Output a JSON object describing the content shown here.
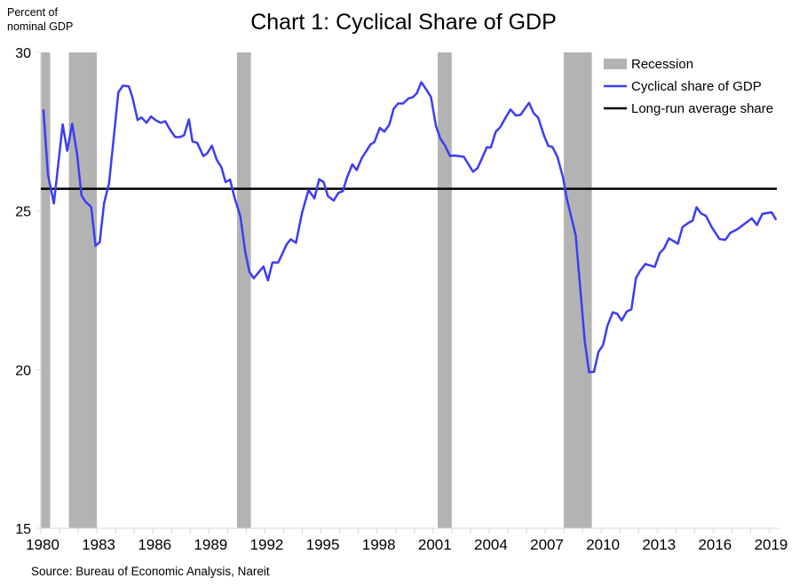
{
  "chart_data": {
    "type": "line",
    "title": "Chart 1: Cyclical Share of GDP",
    "ylabel": "Percent of nominal GDP",
    "xlim": [
      1980,
      2019.5
    ],
    "ylim": [
      15,
      30
    ],
    "yticks": [
      15,
      20,
      25,
      30
    ],
    "xticks": [
      1980,
      1983,
      1986,
      1989,
      1992,
      1995,
      1998,
      2001,
      2004,
      2007,
      2010,
      2013,
      2016,
      2019
    ],
    "grid": false,
    "legend_position": "top-right",
    "legend": [
      "Recession",
      "Cyclical share of GDP",
      "Long-run average share"
    ],
    "colors": {
      "recession": "#b3b3b3",
      "cyclical": "#3c3cf5",
      "average": "#000000"
    },
    "recessions": [
      [
        1980.0,
        1980.5
      ],
      [
        1981.5,
        1983.0
      ],
      [
        1990.5,
        1991.25
      ],
      [
        2001.25,
        2002.0
      ],
      [
        2008.0,
        2009.5
      ]
    ],
    "long_run_average": 25.7,
    "series": [
      {
        "name": "Cyclical share of GDP",
        "points": [
          [
            1980.14,
            28.2
          ],
          [
            1980.38,
            26.15
          ],
          [
            1980.7,
            25.24
          ],
          [
            1981.17,
            27.73
          ],
          [
            1981.41,
            26.9
          ],
          [
            1981.68,
            27.75
          ],
          [
            1981.94,
            26.8
          ],
          [
            1982.17,
            25.5
          ],
          [
            1982.38,
            25.3
          ],
          [
            1982.7,
            25.12
          ],
          [
            1982.93,
            23.9
          ],
          [
            1983.15,
            24.02
          ],
          [
            1983.39,
            25.26
          ],
          [
            1983.65,
            25.87
          ],
          [
            1983.88,
            27.17
          ],
          [
            1984.15,
            28.74
          ],
          [
            1984.39,
            28.95
          ],
          [
            1984.71,
            28.93
          ],
          [
            1984.91,
            28.57
          ],
          [
            1985.18,
            27.87
          ],
          [
            1985.39,
            27.95
          ],
          [
            1985.66,
            27.78
          ],
          [
            1985.9,
            27.98
          ],
          [
            1986.13,
            27.87
          ],
          [
            1986.41,
            27.78
          ],
          [
            1986.66,
            27.83
          ],
          [
            1986.93,
            27.55
          ],
          [
            1987.19,
            27.33
          ],
          [
            1987.45,
            27.33
          ],
          [
            1987.67,
            27.39
          ],
          [
            1987.93,
            27.89
          ],
          [
            1988.12,
            27.19
          ],
          [
            1988.37,
            27.15
          ],
          [
            1988.7,
            26.73
          ],
          [
            1988.91,
            26.82
          ],
          [
            1989.16,
            27.06
          ],
          [
            1989.42,
            26.61
          ],
          [
            1989.67,
            26.38
          ],
          [
            1989.89,
            25.91
          ],
          [
            1990.13,
            25.99
          ],
          [
            1990.38,
            25.4
          ],
          [
            1990.68,
            24.84
          ],
          [
            1990.94,
            23.72
          ],
          [
            1991.16,
            23.09
          ],
          [
            1991.4,
            22.88
          ],
          [
            1991.92,
            23.25
          ],
          [
            1992.16,
            22.81
          ],
          [
            1992.4,
            23.38
          ],
          [
            1992.71,
            23.38
          ],
          [
            1993.16,
            23.95
          ],
          [
            1993.38,
            24.11
          ],
          [
            1993.66,
            24.0
          ],
          [
            1993.98,
            24.93
          ],
          [
            1994.33,
            25.66
          ],
          [
            1994.65,
            25.4
          ],
          [
            1994.9,
            26.0
          ],
          [
            1995.14,
            25.91
          ],
          [
            1995.37,
            25.47
          ],
          [
            1995.68,
            25.33
          ],
          [
            1995.93,
            25.57
          ],
          [
            1996.17,
            25.63
          ],
          [
            1996.39,
            26.05
          ],
          [
            1996.68,
            26.47
          ],
          [
            1996.91,
            26.29
          ],
          [
            1997.18,
            26.66
          ],
          [
            1997.66,
            27.1
          ],
          [
            1997.86,
            27.17
          ],
          [
            1998.15,
            27.62
          ],
          [
            1998.39,
            27.5
          ],
          [
            1998.65,
            27.71
          ],
          [
            1998.89,
            28.22
          ],
          [
            1999.13,
            28.39
          ],
          [
            1999.4,
            28.39
          ],
          [
            1999.69,
            28.55
          ],
          [
            1999.92,
            28.59
          ],
          [
            2000.13,
            28.71
          ],
          [
            2000.37,
            29.06
          ],
          [
            2000.64,
            28.83
          ],
          [
            2000.89,
            28.59
          ],
          [
            2001.15,
            27.69
          ],
          [
            2001.38,
            27.29
          ],
          [
            2001.64,
            27.06
          ],
          [
            2001.91,
            26.73
          ],
          [
            2002.14,
            26.75
          ],
          [
            2002.65,
            26.71
          ],
          [
            2003.14,
            26.24
          ],
          [
            2003.38,
            26.35
          ],
          [
            2003.62,
            26.66
          ],
          [
            2003.88,
            27.01
          ],
          [
            2004.09,
            27.0
          ],
          [
            2004.36,
            27.5
          ],
          [
            2004.6,
            27.64
          ],
          [
            2004.88,
            27.94
          ],
          [
            2005.15,
            28.2
          ],
          [
            2005.43,
            28.01
          ],
          [
            2005.68,
            28.03
          ],
          [
            2006.14,
            28.41
          ],
          [
            2006.38,
            28.09
          ],
          [
            2006.63,
            27.94
          ],
          [
            2006.95,
            27.36
          ],
          [
            2007.17,
            27.05
          ],
          [
            2007.39,
            27.02
          ],
          [
            2007.66,
            26.71
          ],
          [
            2007.96,
            26.05
          ],
          [
            2008.16,
            25.4
          ],
          [
            2008.64,
            24.23
          ],
          [
            2009.12,
            20.92
          ],
          [
            2009.35,
            19.92
          ],
          [
            2009.62,
            19.93
          ],
          [
            2009.86,
            20.57
          ],
          [
            2010.1,
            20.77
          ],
          [
            2010.34,
            21.39
          ],
          [
            2010.62,
            21.81
          ],
          [
            2010.86,
            21.76
          ],
          [
            2011.1,
            21.55
          ],
          [
            2011.37,
            21.83
          ],
          [
            2011.62,
            21.9
          ],
          [
            2011.86,
            22.88
          ],
          [
            2012.08,
            23.11
          ],
          [
            2012.37,
            23.33
          ],
          [
            2012.87,
            23.24
          ],
          [
            2013.13,
            23.67
          ],
          [
            2013.37,
            23.82
          ],
          [
            2013.63,
            24.14
          ],
          [
            2014.11,
            23.97
          ],
          [
            2014.35,
            24.49
          ],
          [
            2014.63,
            24.61
          ],
          [
            2014.9,
            24.7
          ],
          [
            2015.11,
            25.12
          ],
          [
            2015.34,
            24.93
          ],
          [
            2015.62,
            24.84
          ],
          [
            2015.9,
            24.51
          ],
          [
            2016.33,
            24.12
          ],
          [
            2016.65,
            24.09
          ],
          [
            2016.91,
            24.31
          ],
          [
            2017.28,
            24.42
          ],
          [
            2018.07,
            24.77
          ],
          [
            2018.34,
            24.56
          ],
          [
            2018.63,
            24.91
          ],
          [
            2019.02,
            24.95
          ],
          [
            2019.13,
            24.96
          ],
          [
            2019.37,
            24.72
          ]
        ]
      }
    ],
    "source": "Source:  Bureau of Economic Analysis, Nareit"
  }
}
